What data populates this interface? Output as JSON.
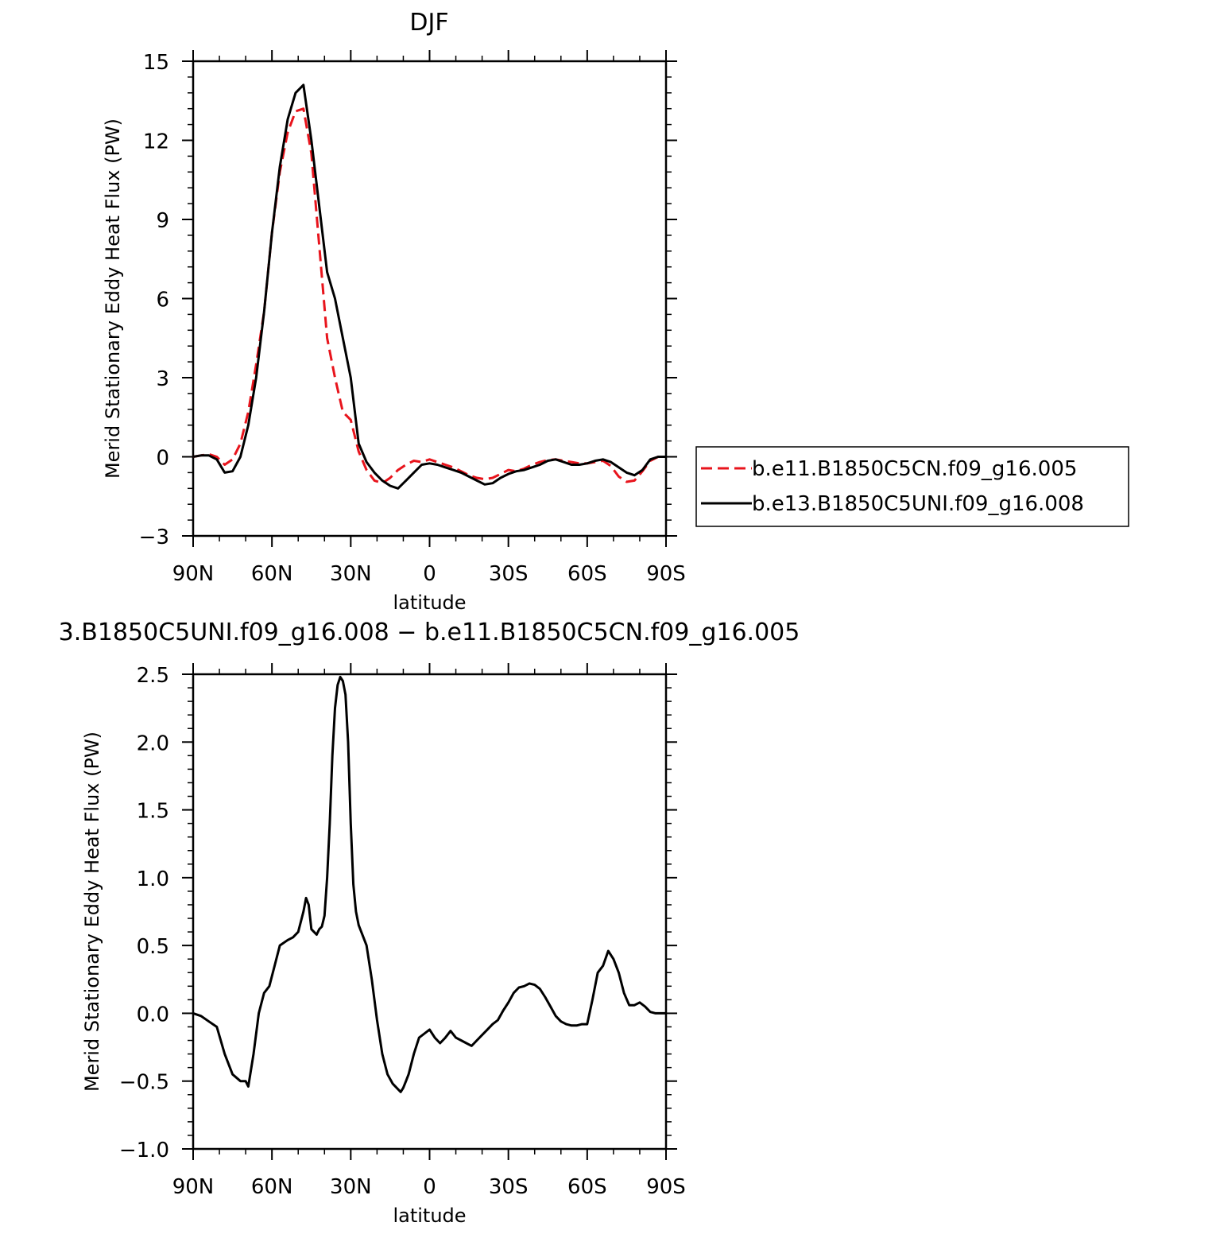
{
  "chart_data": [
    {
      "type": "line",
      "title": "DJF",
      "xlabel": "latitude",
      "ylabel": "Merid Stationary Eddy Heat Flux (PW)",
      "xlim": [
        90,
        -90
      ],
      "ylim": [
        -3,
        15
      ],
      "yticks": [
        -3,
        0,
        3,
        6,
        9,
        12,
        15
      ],
      "ytick_labels": [
        "−3",
        "0",
        "3",
        "6",
        "9",
        "12",
        "15"
      ],
      "xticks": [
        90,
        60,
        30,
        0,
        -30,
        -60,
        -90
      ],
      "xtick_labels": [
        "90N",
        "60N",
        "30N",
        "0",
        "30S",
        "60S",
        "90S"
      ],
      "legend_position": "right",
      "series": [
        {
          "name": "b.e11.B1850C5CN.f09_g16.005",
          "color": "#e8141c",
          "dash": "dashed",
          "x": [
            90,
            87,
            84,
            81,
            78,
            75,
            72,
            69,
            66,
            63,
            60,
            57,
            54,
            51,
            48,
            45,
            42,
            39,
            36,
            33,
            30,
            27,
            24,
            21,
            18,
            15,
            12,
            9,
            6,
            3,
            0,
            -3,
            -6,
            -9,
            -12,
            -15,
            -18,
            -21,
            -24,
            -27,
            -30,
            -33,
            -36,
            -39,
            -42,
            -45,
            -48,
            -51,
            -54,
            -57,
            -60,
            -63,
            -66,
            -69,
            -72,
            -75,
            -78,
            -81,
            -84,
            -87,
            -90
          ],
          "y": [
            0,
            0.05,
            0.1,
            0,
            -0.3,
            -0.1,
            0.5,
            1.7,
            3.5,
            5.5,
            8.5,
            10.8,
            12.3,
            13.1,
            13.2,
            11.5,
            8,
            4.5,
            3,
            1.7,
            1.4,
            0.2,
            -0.5,
            -0.9,
            -1,
            -0.8,
            -0.5,
            -0.3,
            -0.15,
            -0.2,
            -0.1,
            -0.2,
            -0.3,
            -0.4,
            -0.55,
            -0.7,
            -0.8,
            -0.85,
            -0.8,
            -0.65,
            -0.5,
            -0.55,
            -0.45,
            -0.3,
            -0.2,
            -0.12,
            -0.1,
            -0.15,
            -0.2,
            -0.25,
            -0.25,
            -0.2,
            -0.15,
            -0.35,
            -0.75,
            -0.95,
            -0.9,
            -0.55,
            -0.15,
            0,
            0
          ]
        },
        {
          "name": "b.e13.B1850C5UNI.f09_g16.008",
          "color": "#000000",
          "dash": "solid",
          "x": [
            90,
            87,
            84,
            81,
            78,
            75,
            72,
            69,
            66,
            63,
            60,
            57,
            54,
            51,
            48,
            45,
            42,
            39,
            36,
            33,
            30,
            27,
            24,
            21,
            18,
            15,
            12,
            9,
            6,
            3,
            0,
            -3,
            -6,
            -9,
            -12,
            -15,
            -18,
            -21,
            -24,
            -27,
            -30,
            -33,
            -36,
            -39,
            -42,
            -45,
            -48,
            -51,
            -54,
            -57,
            -60,
            -63,
            -66,
            -69,
            -72,
            -75,
            -78,
            -81,
            -84,
            -87,
            -90
          ],
          "y": [
            0,
            0.05,
            0.05,
            -0.1,
            -0.6,
            -0.55,
            0,
            1.2,
            3,
            5.5,
            8.5,
            11,
            12.8,
            13.8,
            14.1,
            12,
            9.5,
            7,
            6,
            4.5,
            3,
            0.5,
            -0.2,
            -0.6,
            -0.9,
            -1.1,
            -1.2,
            -0.9,
            -0.6,
            -0.3,
            -0.25,
            -0.3,
            -0.4,
            -0.5,
            -0.6,
            -0.75,
            -0.9,
            -1.05,
            -1,
            -0.8,
            -0.65,
            -0.55,
            -0.5,
            -0.4,
            -0.3,
            -0.15,
            -0.1,
            -0.2,
            -0.3,
            -0.3,
            -0.25,
            -0.15,
            -0.1,
            -0.2,
            -0.4,
            -0.6,
            -0.7,
            -0.5,
            -0.1,
            0,
            0
          ]
        }
      ]
    },
    {
      "type": "line",
      "title": "3.B1850C5UNI.f09_g16.008 − b.e11.B1850C5CN.f09_g16.005",
      "xlabel": "latitude",
      "ylabel": "Merid Stationary Eddy Heat Flux (PW)",
      "xlim": [
        90,
        -90
      ],
      "ylim": [
        -1.0,
        2.5
      ],
      "yticks": [
        -1.0,
        -0.5,
        0.0,
        0.5,
        1.0,
        1.5,
        2.0,
        2.5
      ],
      "ytick_labels": [
        "−1.0",
        "−0.5",
        "0.0",
        "0.5",
        "1.0",
        "1.5",
        "2.0",
        "2.5"
      ],
      "xticks": [
        90,
        60,
        30,
        0,
        -30,
        -60,
        -90
      ],
      "xtick_labels": [
        "90N",
        "60N",
        "30N",
        "0",
        "30S",
        "60S",
        "90S"
      ],
      "series": [
        {
          "color": "#000000",
          "dash": "solid",
          "x": [
            90,
            87,
            84,
            81,
            78,
            75,
            72,
            70,
            69,
            67,
            65,
            63,
            61,
            59,
            57,
            54,
            52,
            50,
            48,
            47,
            46,
            45,
            44,
            43,
            42,
            41,
            40,
            39,
            38,
            37,
            36,
            35,
            34,
            33,
            32,
            31,
            30,
            29,
            28,
            27,
            26,
            24,
            22,
            20,
            18,
            16,
            14,
            12,
            11,
            10,
            9,
            8,
            6,
            4,
            2,
            0,
            -2,
            -4,
            -6,
            -8,
            -10,
            -12,
            -14,
            -16,
            -18,
            -20,
            -22,
            -24,
            -26,
            -28,
            -30,
            -32,
            -34,
            -36,
            -38,
            -40,
            -42,
            -44,
            -46,
            -48,
            -50,
            -52,
            -54,
            -56,
            -58,
            -60,
            -62,
            -64,
            -66,
            -68,
            -70,
            -72,
            -74,
            -76,
            -78,
            -80,
            -82,
            -84,
            -86,
            -88,
            -90
          ],
          "y": [
            0,
            -0.02,
            -0.06,
            -0.1,
            -0.3,
            -0.45,
            -0.5,
            -0.5,
            -0.54,
            -0.3,
            0,
            0.15,
            0.2,
            0.35,
            0.5,
            0.54,
            0.56,
            0.6,
            0.75,
            0.85,
            0.8,
            0.62,
            0.6,
            0.58,
            0.62,
            0.64,
            0.72,
            1.0,
            1.4,
            1.9,
            2.25,
            2.42,
            2.48,
            2.45,
            2.35,
            2.0,
            1.4,
            0.95,
            0.75,
            0.65,
            0.6,
            0.5,
            0.25,
            -0.05,
            -0.3,
            -0.45,
            -0.52,
            -0.56,
            -0.58,
            -0.55,
            -0.5,
            -0.45,
            -0.3,
            -0.18,
            -0.15,
            -0.12,
            -0.18,
            -0.22,
            -0.18,
            -0.13,
            -0.18,
            -0.2,
            -0.22,
            -0.24,
            -0.2,
            -0.16,
            -0.12,
            -0.08,
            -0.05,
            0.02,
            0.08,
            0.15,
            0.19,
            0.2,
            0.22,
            0.21,
            0.18,
            0.12,
            0.05,
            -0.02,
            -0.06,
            -0.08,
            -0.09,
            -0.09,
            -0.08,
            -0.08,
            0.1,
            0.3,
            0.35,
            0.46,
            0.4,
            0.3,
            0.15,
            0.06,
            0.06,
            0.08,
            0.05,
            0.01,
            0,
            0,
            0
          ]
        }
      ]
    }
  ]
}
